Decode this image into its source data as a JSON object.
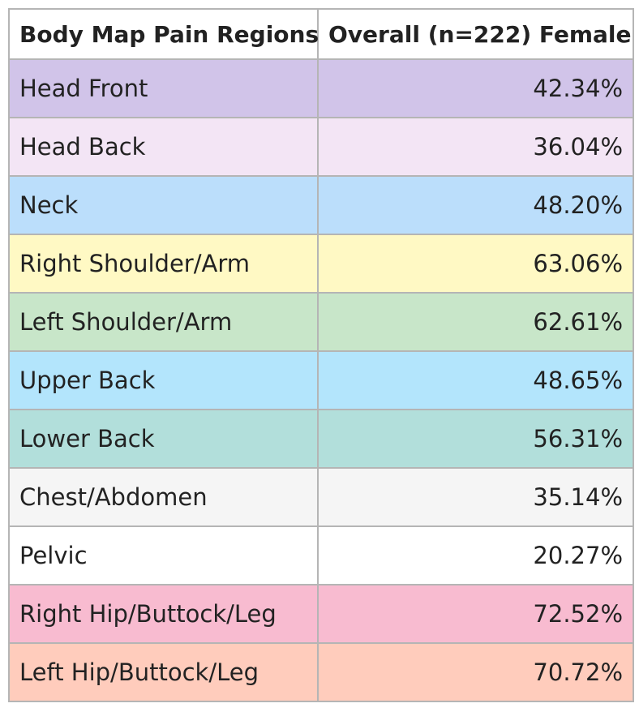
{
  "headers": [
    "Body Map Pain Regions",
    "Overall (n=222) Female"
  ],
  "rows": [
    {
      "region": "Head Front",
      "value": "42.34%",
      "color": "#d1c4e9"
    },
    {
      "region": "Head Back",
      "value": "36.04%",
      "color": "#f3e5f5"
    },
    {
      "region": "Neck",
      "value": "48.20%",
      "color": "#bbdefb"
    },
    {
      "region": "Right Shoulder/Arm",
      "value": "63.06%",
      "color": "#fff9c4"
    },
    {
      "region": "Left Shoulder/Arm",
      "value": "62.61%",
      "color": "#c8e6c9"
    },
    {
      "region": "Upper Back",
      "value": "48.65%",
      "color": "#b3e5fc"
    },
    {
      "region": "Lower Back",
      "value": "56.31%",
      "color": "#b2dfdb"
    },
    {
      "region": "Chest/Abdomen",
      "value": "35.14%",
      "color": "#f5f5f5"
    },
    {
      "region": "Pelvic",
      "value": "20.27%",
      "color": "#ffffff"
    },
    {
      "region": "Right Hip/Buttock/Leg",
      "value": "72.52%",
      "color": "#f8bbd0"
    },
    {
      "region": "Left Hip/Buttock/Leg",
      "value": "70.72%",
      "color": "#ffccbc"
    }
  ]
}
